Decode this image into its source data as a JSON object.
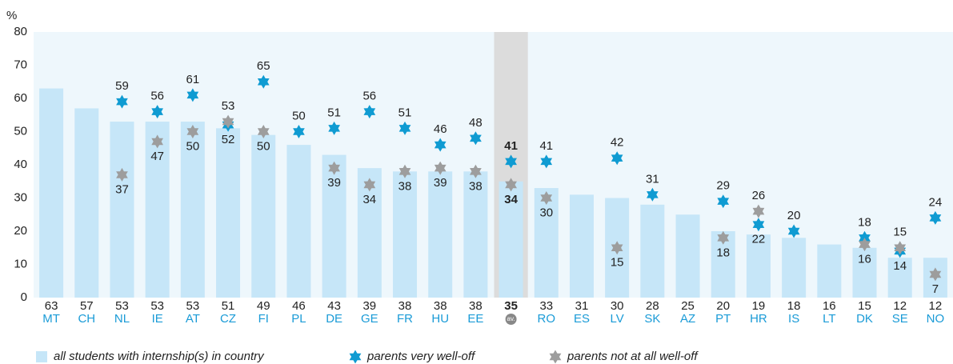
{
  "chart_data": {
    "type": "bar",
    "y_axis_label": "%",
    "categories": [
      "MT",
      "CH",
      "NL",
      "IE",
      "AT",
      "CZ",
      "FI",
      "PL",
      "DE",
      "GE",
      "FR",
      "HU",
      "EE",
      "av.",
      "RO",
      "ES",
      "LV",
      "SK",
      "AZ",
      "PT",
      "HR",
      "IS",
      "LT",
      "DK",
      "SE",
      "NO"
    ],
    "highlight_category": "av.",
    "ylim": [
      0,
      80
    ],
    "yticks": [
      0,
      10,
      20,
      30,
      40,
      50,
      60,
      70,
      80
    ],
    "grid": false,
    "legend": "bottom",
    "series": [
      {
        "name": "all students with internship(s) in country",
        "type": "bar",
        "color": "#c6e6f8",
        "values": [
          63,
          57,
          53,
          53,
          53,
          51,
          49,
          46,
          43,
          39,
          38,
          38,
          38,
          35,
          33,
          31,
          30,
          28,
          25,
          20,
          19,
          18,
          16,
          15,
          12,
          12
        ]
      },
      {
        "name": "parents very well-off",
        "type": "star",
        "color": "#0f9bd2",
        "values": [
          null,
          null,
          59,
          56,
          61,
          52,
          65,
          50,
          51,
          56,
          51,
          46,
          48,
          41,
          41,
          null,
          42,
          31,
          null,
          29,
          22,
          20,
          null,
          18,
          14,
          24
        ]
      },
      {
        "name": "parents not at all well-off",
        "type": "star",
        "color": "#9d9d9d",
        "values": [
          null,
          null,
          37,
          47,
          50,
          53,
          50,
          null,
          39,
          34,
          38,
          39,
          38,
          34,
          30,
          null,
          15,
          null,
          null,
          18,
          26,
          null,
          null,
          16,
          15,
          7
        ]
      }
    ]
  }
}
